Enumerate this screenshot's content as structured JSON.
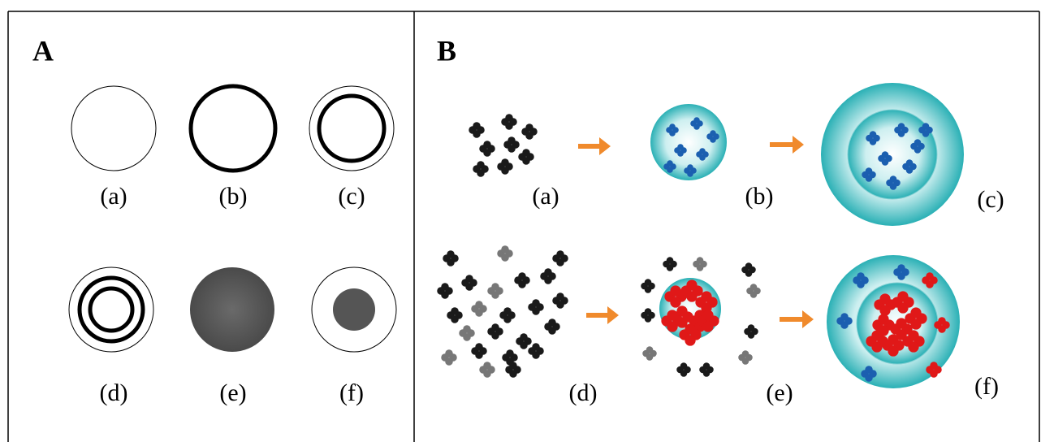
{
  "panels": [
    {
      "label": "A",
      "items": [
        "(a)",
        "(b)",
        "(c)",
        "(d)",
        "(e)",
        "(f)"
      ]
    },
    {
      "label": "B",
      "items": [
        "(a)",
        "(b)",
        "(c)",
        "(d)",
        "(e)",
        "(f)"
      ]
    }
  ]
}
